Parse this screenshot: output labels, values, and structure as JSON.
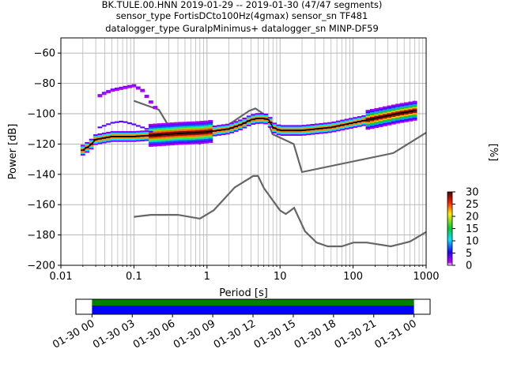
{
  "title_lines": [
    "BK.TULE.00.HNN   2019-01-29 -- 2019-01-30  (47/47 segments)",
    "sensor_type FortisDCto100Hz(4gmax) sensor_sn TF481",
    "datalogger_type GuralpMinimus+ datalogger_sn MINP-DF59"
  ],
  "chart_data": {
    "type": "heatmap",
    "xlabel": "Period [s]",
    "ylabel": "Power [dB]",
    "x_scale": "log",
    "xlim": [
      0.01,
      1000
    ],
    "ylim": [
      -200,
      -50
    ],
    "x_ticks": [
      0.01,
      0.1,
      1,
      10,
      100,
      1000
    ],
    "x_tick_labels": [
      "0.01",
      "0.1",
      "1",
      "10",
      "100",
      "1000"
    ],
    "y_ticks": [
      -200,
      -180,
      -160,
      -140,
      -120,
      -100,
      -80,
      -60
    ],
    "y_tick_labels": [
      "−200",
      "−180",
      "−160",
      "−140",
      "−120",
      "−100",
      "−80",
      "−60"
    ],
    "grid": true,
    "colorbar": {
      "label": "[%]",
      "min": 0,
      "max": 30,
      "ticks": [
        0,
        5,
        10,
        15,
        20,
        25,
        30
      ],
      "tick_labels": [
        "0",
        "5",
        "10",
        "15",
        "20",
        "25",
        "30"
      ],
      "colormap": [
        "#ffffff",
        "#c400ff",
        "#2000ff",
        "#00e6ff",
        "#00cc33",
        "#ffee00",
        "#ff2200",
        "#500000"
      ]
    },
    "noise_models": [
      {
        "name": "NHNM",
        "color": "#666666",
        "x": [
          0.1,
          0.22,
          0.32,
          0.8,
          3.8,
          4.6,
          6.3,
          7.9,
          15.4,
          20,
          354.8,
          1000
        ],
        "y": [
          -91.5,
          -97.4,
          -110.5,
          -120,
          -98,
          -96.5,
          -101,
          -113.5,
          -120,
          -138.5,
          -126,
          -112.5
        ]
      },
      {
        "name": "NLNM",
        "color": "#666666",
        "x": [
          0.1,
          0.17,
          0.4,
          0.8,
          1.24,
          2.4,
          4.3,
          5.0,
          6.0,
          10,
          12,
          15.6,
          21.9,
          31.6,
          45,
          70,
          101,
          154,
          328,
          600,
          1000
        ],
        "y": [
          -168,
          -166.7,
          -166.7,
          -169.2,
          -163.7,
          -148.6,
          -141.1,
          -141.1,
          -149,
          -163.8,
          -166.2,
          -162.1,
          -177.5,
          -185,
          -187.5,
          -187.5,
          -185,
          -185,
          -187.5,
          -184.4,
          -178
        ]
      }
    ],
    "psd_mode": {
      "name": "mode",
      "x": [
        0.02,
        0.025,
        0.03,
        0.05,
        0.1,
        0.2,
        0.4,
        0.7,
        1,
        2,
        3,
        4,
        5,
        6,
        7,
        8,
        10,
        20,
        50,
        100,
        200,
        400,
        700
      ],
      "y": [
        -124,
        -121,
        -117,
        -115,
        -115,
        -114,
        -113,
        -112.5,
        -112,
        -110,
        -107,
        -104,
        -103,
        -103,
        -104,
        -109,
        -111,
        -111,
        -109,
        -106,
        -103,
        -100,
        -98
      ]
    },
    "psd_upper_branch": {
      "x": [
        0.03,
        0.035,
        0.05,
        0.07,
        0.1,
        0.13,
        0.16,
        0.2
      ],
      "y": [
        -91,
        -87,
        -84,
        -82.5,
        -81,
        -84,
        -90,
        -96
      ]
    },
    "psd_secondary_branch": {
      "x": [
        0.03,
        0.05,
        0.07,
        0.1,
        0.15,
        0.2
      ],
      "y": [
        -110,
        -106,
        -105,
        -107,
        -110,
        -114
      ]
    },
    "time_axis": {
      "ticks": [
        "01-30 00",
        "01-30 03",
        "01-30 06",
        "01-30 09",
        "01-30 12",
        "01-30 15",
        "01-30 18",
        "01-30 21",
        "01-31 00"
      ],
      "coverage_start_hour": 0,
      "coverage_end_hour": 24,
      "window_start_hour": -1.2,
      "window_end_hour": 25.2,
      "coverage_colors": [
        "#008000",
        "#0000ff"
      ]
    }
  }
}
